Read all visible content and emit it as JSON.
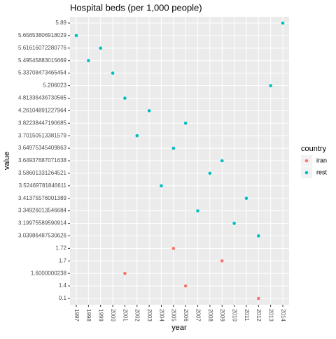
{
  "chart_data": {
    "type": "scatter",
    "title": "Hospital beds (per 1,000 people)",
    "x_label": "year",
    "y_label": "value",
    "legend_title": "country",
    "categories": [
      1997,
      1998,
      1999,
      2000,
      2001,
      2002,
      2003,
      2004,
      2005,
      2006,
      2007,
      2008,
      2009,
      2010,
      2011,
      2012,
      2013,
      2014
    ],
    "yticks": [
      0.1,
      1.4,
      1.6000000238,
      1.7,
      1.72,
      3.03986487530626,
      3.19975589590914,
      3.34926013546684,
      3.41375576001389,
      3.52469781846611,
      3.58601331264521,
      3.64937687071638,
      3.64975345409863,
      3.70150513381579,
      3.82238447190685,
      4.26104891227964,
      4.81336436730565,
      5.206023,
      5.33708473465454,
      5.49545883015669,
      5.61616072280776,
      5.65653806918029,
      5.89
    ],
    "grid": true,
    "legend": "right",
    "series": [
      {
        "name": "iran",
        "color": "#F8766D",
        "x": [
          2001,
          2005,
          2006,
          2009,
          2012
        ],
        "values": [
          1.6000000238,
          1.72,
          1.4,
          1.7,
          0.1
        ]
      },
      {
        "name": "rest",
        "color": "#00BFC4",
        "x": [
          1997,
          1998,
          1999,
          2000,
          2001,
          2002,
          2003,
          2004,
          2005,
          2006,
          2007,
          2008,
          2009,
          2010,
          2011,
          2012,
          2013,
          2014
        ],
        "values": [
          5.65653806918029,
          5.49545883015669,
          5.61616072280776,
          5.33708473465454,
          4.81336436730565,
          3.70150513381579,
          4.26104891227964,
          3.52469781846611,
          3.64975345409863,
          3.82238447190685,
          3.34926013546684,
          3.58601331264521,
          3.64937687071638,
          3.19975589590914,
          3.41375576001389,
          3.03986487530626,
          5.206023,
          5.89
        ]
      }
    ]
  }
}
